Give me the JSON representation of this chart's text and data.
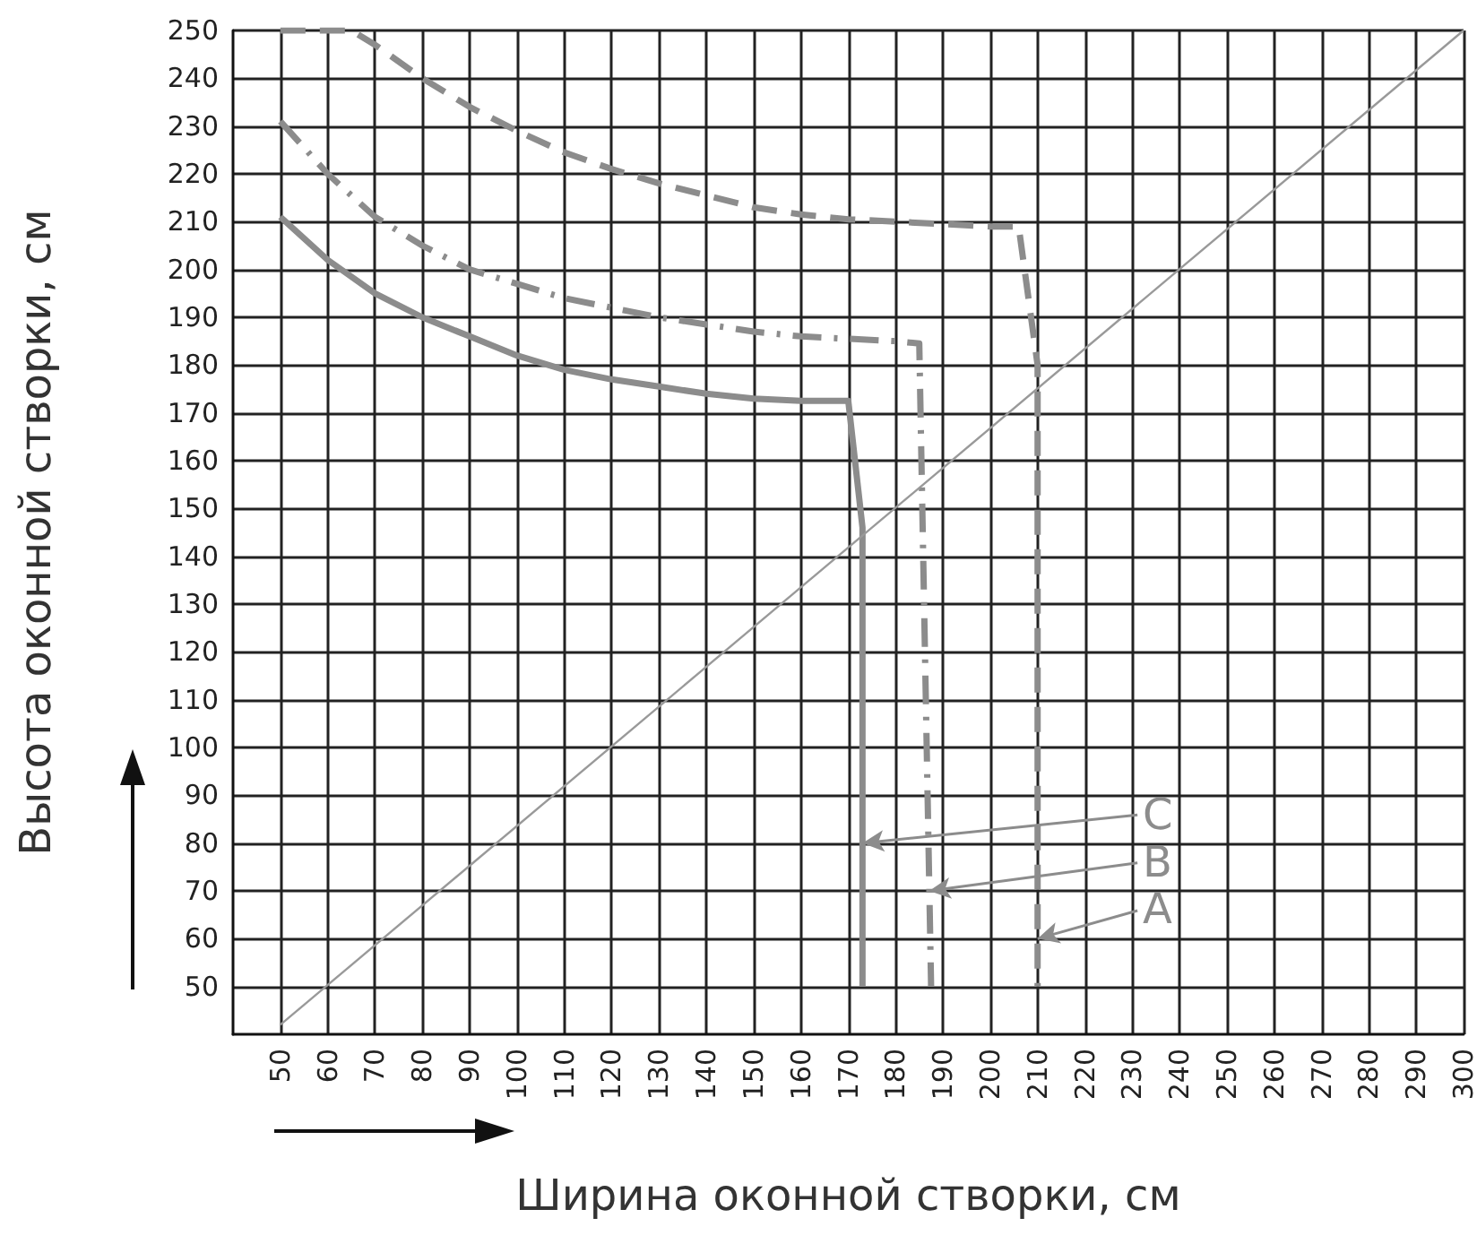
{
  "chart_data": {
    "type": "line",
    "xlabel": "Ширина оконной створки, см",
    "ylabel": "Высота оконной створки, см",
    "xlim": [
      40,
      300
    ],
    "xticks": [
      50,
      60,
      70,
      80,
      90,
      100,
      110,
      120,
      130,
      140,
      150,
      160,
      170,
      180,
      190,
      200,
      210,
      220,
      230,
      240,
      250,
      260,
      270,
      280,
      290,
      300
    ],
    "ylim": [
      40,
      250
    ],
    "yticks": [
      50,
      60,
      70,
      80,
      90,
      100,
      110,
      120,
      130,
      140,
      150,
      160,
      170,
      180,
      190,
      200,
      210,
      220,
      230,
      240,
      250
    ],
    "grid": true,
    "marker": "none",
    "series": [
      {
        "color": "#8c8c8c",
        "line_style": "solid",
        "x": [
          50,
          60,
          70,
          80,
          90,
          100,
          110,
          120,
          130,
          140,
          150,
          160,
          170,
          173,
          173
        ],
        "values": [
          211,
          202,
          195,
          190,
          186,
          182,
          179,
          177,
          175.5,
          174,
          173,
          172.5,
          172.5,
          146,
          50
        ]
      },
      {
        "color": "#8c8c8c",
        "line_style": "dashdot",
        "x": [
          50,
          60,
          70,
          80,
          90,
          100,
          110,
          120,
          130,
          140,
          150,
          160,
          170,
          180,
          185,
          187.5
        ],
        "values": [
          231,
          220,
          211,
          205,
          200,
          197,
          194,
          192,
          190,
          188.5,
          187,
          186,
          185.5,
          185,
          184.5,
          50
        ]
      },
      {
        "color": "#8c8c8c",
        "line_style": "dashed",
        "x": [
          50,
          65,
          70,
          80,
          90,
          100,
          110,
          120,
          130,
          140,
          150,
          160,
          170,
          180,
          190,
          200,
          206,
          210,
          210
        ],
        "values": [
          250,
          250,
          247,
          240,
          234,
          229,
          224.5,
          221,
          218,
          215.5,
          213,
          211.5,
          210.5,
          210,
          209.5,
          209,
          209,
          180,
          50
        ]
      },
      {
        "color": "#999999",
        "x": [
          50,
          300
        ],
        "values": [
          42,
          250
        ]
      }
    ],
    "annotations": [
      {
        "text": "C",
        "x": 173,
        "y": 80
      },
      {
        "text": "B",
        "x": 187.1,
        "y": 70
      },
      {
        "text": "A",
        "x": 210,
        "y": 60
      }
    ]
  }
}
